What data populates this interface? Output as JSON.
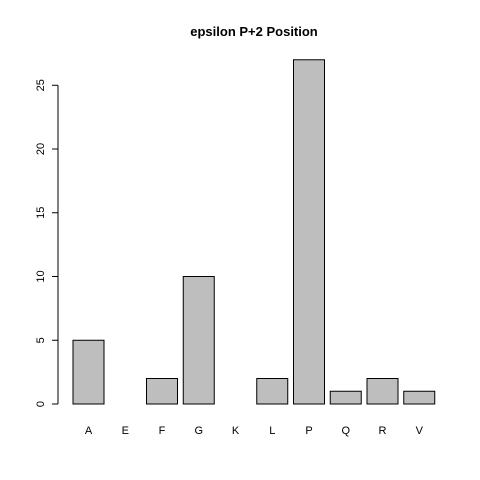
{
  "chart_data": {
    "type": "bar",
    "title": "epsilon P+2 Position",
    "xlabel": "",
    "ylabel": "",
    "categories": [
      "A",
      "E",
      "F",
      "G",
      "K",
      "L",
      "P",
      "Q",
      "R",
      "V"
    ],
    "values": [
      5,
      0,
      2,
      10,
      0,
      2,
      27,
      1,
      2,
      1
    ],
    "ylim": [
      0,
      28.08
    ],
    "yticks": [
      0,
      5,
      10,
      15,
      20,
      25
    ],
    "grid": false,
    "legend": "none",
    "colors": {
      "bar_fill": "#bebebe",
      "bar_stroke": "#000000"
    }
  }
}
